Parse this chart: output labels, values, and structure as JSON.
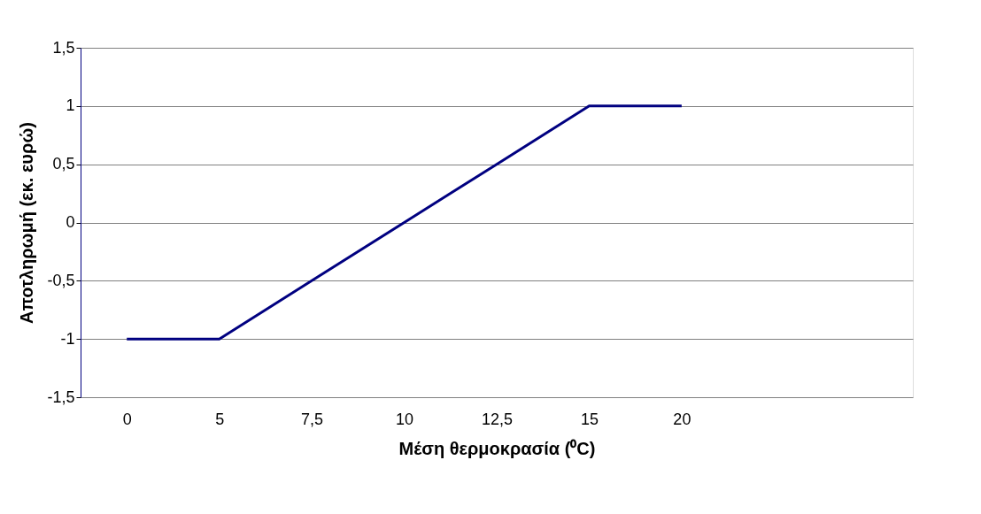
{
  "chart_data": {
    "type": "line",
    "xlabel": "Μέση θερμοκρασία (⁰C)",
    "ylabel": "Αποτληρωμή (εκ. ευρώ)",
    "categories": [
      "0",
      "5",
      "7,5",
      "10",
      "12,5",
      "15",
      "20",
      null,
      null
    ],
    "series": [
      {
        "color": "#000080",
        "values": [
          -1,
          -1,
          -0.5,
          0,
          0.5,
          1,
          1,
          null,
          null
        ]
      }
    ],
    "ylim": [
      -1.5,
      1.5
    ],
    "yticks": [
      {
        "value": -1.5,
        "label": "-1,5"
      },
      {
        "value": -1,
        "label": "-1"
      },
      {
        "value": -0.5,
        "label": "-0,5"
      },
      {
        "value": 0,
        "label": "0"
      },
      {
        "value": 0.5,
        "label": "0,5"
      },
      {
        "value": 1,
        "label": "1"
      },
      {
        "value": 1.5,
        "label": "1,5"
      }
    ],
    "grid": "y",
    "legend": false
  }
}
